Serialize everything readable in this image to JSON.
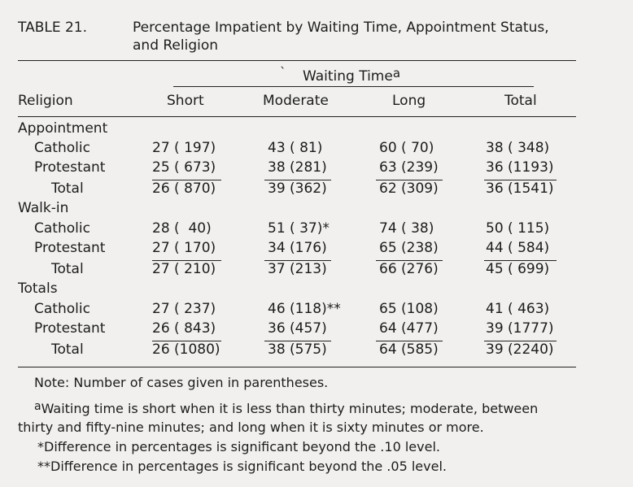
{
  "table_label": "TABLE 21.",
  "title_line1": "Percentage Impatient by Waiting Time, Appointment Status,",
  "title_line2": "and Religion",
  "header": {
    "tick": "`",
    "group": "Waiting Time",
    "group_sup": "a",
    "religion": "Religion",
    "short": "Short",
    "moderate": "Moderate",
    "long": "Long",
    "total": "Total"
  },
  "sections": [
    {
      "title": "Appointment",
      "rows": [
        {
          "label": "Catholic",
          "short": "27 ( 197)",
          "moderate": "43 ( 81)",
          "long": "60 ( 70)",
          "total": "38 ( 348)"
        },
        {
          "label": "Protestant",
          "short": "25 ( 673)",
          "moderate": "38 (281)",
          "long": "63 (239)",
          "total": "36 (1193)"
        },
        {
          "label": "Total",
          "short": "26 ( 870)",
          "moderate": "39 (362)",
          "long": "62 (309)",
          "total": "36 (1541)"
        }
      ]
    },
    {
      "title": "Walk-in",
      "rows": [
        {
          "label": "Catholic",
          "short": "28 (  40)",
          "moderate": "51 ( 37)*",
          "long": "74 ( 38)",
          "total": "50 ( 115)"
        },
        {
          "label": "Protestant",
          "short": "27 ( 170)",
          "moderate": "34 (176)",
          "long": "65 (238)",
          "total": "44 ( 584)"
        },
        {
          "label": "Total",
          "short": "27 ( 210)",
          "moderate": "37 (213)",
          "long": "66 (276)",
          "total": "45 ( 699)"
        }
      ]
    },
    {
      "title": "Totals",
      "rows": [
        {
          "label": "Catholic",
          "short": "27 ( 237)",
          "moderate": "46 (118)**",
          "long": "65 (108)",
          "total": "41 ( 463)"
        },
        {
          "label": "Protestant",
          "short": "26 ( 843)",
          "moderate": "36 (457)",
          "long": "64 (477)",
          "total": "39 (1777)"
        },
        {
          "label": "Total",
          "short": "26 (1080)",
          "moderate": "38 (575)",
          "long": "64 (585)",
          "total": "39 (2240)"
        }
      ]
    }
  ],
  "notes": {
    "note": "Note: Number of cases given in parentheses.",
    "a_mark": "a",
    "a_line1": "Waiting time is short when it is less than thirty minutes; moderate, between",
    "a_line2": "thirty and fifty-nine minutes; and long when it is sixty minutes or more.",
    "star1": "*Difference in percentages is significant beyond the .10 level.",
    "star2": "**Difference in percentages is significant beyond the .05 level."
  }
}
